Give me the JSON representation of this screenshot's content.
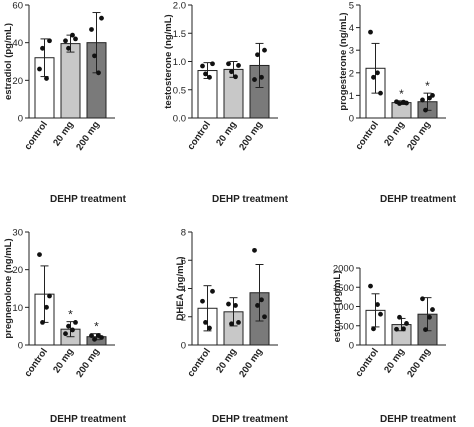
{
  "chart_data": [
    {
      "type": "bar",
      "ylabel": "estradiol (pg/mL)",
      "xlabel": "DEHP treatment",
      "categories": [
        "control",
        "20 mg",
        "200 mg"
      ],
      "ylim": [
        0,
        60
      ],
      "yticks": [
        "0",
        "20",
        "40",
        "60"
      ],
      "means": [
        32,
        39.5,
        40
      ],
      "errors": [
        10,
        4.5,
        16
      ],
      "points": [
        [
          26,
          37,
          21,
          41
        ],
        [
          41,
          37,
          44,
          42
        ],
        [
          47,
          33,
          24,
          53
        ]
      ],
      "significance": [
        "",
        "",
        ""
      ]
    },
    {
      "type": "bar",
      "ylabel": "testosterone (ng/mL)",
      "xlabel": "DEHP treatment",
      "categories": [
        "control",
        "20 mg",
        "200 mg"
      ],
      "ylim": [
        0,
        2.0
      ],
      "yticks": [
        "0.0",
        "0.5",
        "1.0",
        "1.5",
        "2.0"
      ],
      "means": [
        0.84,
        0.86,
        0.93
      ],
      "errors": [
        0.14,
        0.14,
        0.39
      ],
      "points": [
        [
          0.92,
          0.78,
          0.72,
          0.96
        ],
        [
          0.96,
          0.82,
          0.73,
          0.93
        ],
        [
          0.68,
          1.12,
          0.72,
          1.2
        ]
      ],
      "significance": [
        "",
        "",
        ""
      ]
    },
    {
      "type": "bar",
      "ylabel": "progesterone (ng/mL)",
      "xlabel": "DEHP treatment",
      "categories": [
        "control",
        "20 mg",
        "200 mg"
      ],
      "ylim": [
        0,
        5
      ],
      "yticks": [
        "0",
        "1",
        "2",
        "3",
        "4",
        "5"
      ],
      "means": [
        2.2,
        0.68,
        0.72
      ],
      "errors": [
        1.1,
        0.08,
        0.38
      ],
      "points": [
        [
          3.8,
          1.8,
          2.0,
          1.1
        ],
        [
          0.72,
          0.64,
          0.7,
          0.66
        ],
        [
          0.8,
          0.35,
          0.88,
          1.0
        ]
      ],
      "significance": [
        "",
        "*",
        "*"
      ]
    },
    {
      "type": "bar",
      "ylabel": "pregnenolone (ng/mL)",
      "xlabel": "DEHP treatment",
      "categories": [
        "control",
        "20 mg",
        "200 mg"
      ],
      "ylim": [
        0,
        30
      ],
      "yticks": [
        "0",
        "10",
        "20",
        "30"
      ],
      "means": [
        13.5,
        4.2,
        2.2
      ],
      "errors": [
        7.5,
        2.0,
        0.8
      ],
      "points": [
        [
          24,
          6,
          10,
          13
        ],
        [
          3,
          5,
          4,
          6
        ],
        [
          2.5,
          1.5,
          2.5,
          2
        ]
      ],
      "significance": [
        "",
        "*",
        "*"
      ]
    },
    {
      "type": "bar",
      "ylabel": "DHEA (ng/mL)",
      "xlabel": "DEHP treatment",
      "categories": [
        "control",
        "20 mg",
        "200 mg"
      ],
      "ylim": [
        0,
        8
      ],
      "yticks": [
        "0",
        "2",
        "4",
        "6",
        "8"
      ],
      "means": [
        2.6,
        2.35,
        3.7
      ],
      "errors": [
        1.6,
        1.0,
        2.0
      ],
      "points": [
        [
          3.1,
          1.6,
          1.2,
          3.8
        ],
        [
          2.9,
          1.5,
          2.8,
          1.6
        ],
        [
          6.7,
          2.8,
          3.2,
          2.0
        ]
      ],
      "significance": [
        "",
        "",
        ""
      ]
    },
    {
      "type": "bar",
      "ylabel": "estrone (pg/mL)",
      "xlabel": "DEHP treatment",
      "categories": [
        "control",
        "20 mg",
        "200 mg"
      ],
      "ylim": [
        0,
        2000
      ],
      "yticks": [
        "0",
        "500",
        "1000",
        "1500",
        "2000"
      ],
      "means": [
        900,
        530,
        800
      ],
      "errors": [
        430,
        160,
        430
      ],
      "points": [
        [
          1530,
          420,
          1050,
          800
        ],
        [
          410,
          720,
          420,
          560
        ],
        [
          1200,
          400,
          720,
          920
        ]
      ],
      "significance": [
        "",
        "",
        ""
      ]
    }
  ]
}
